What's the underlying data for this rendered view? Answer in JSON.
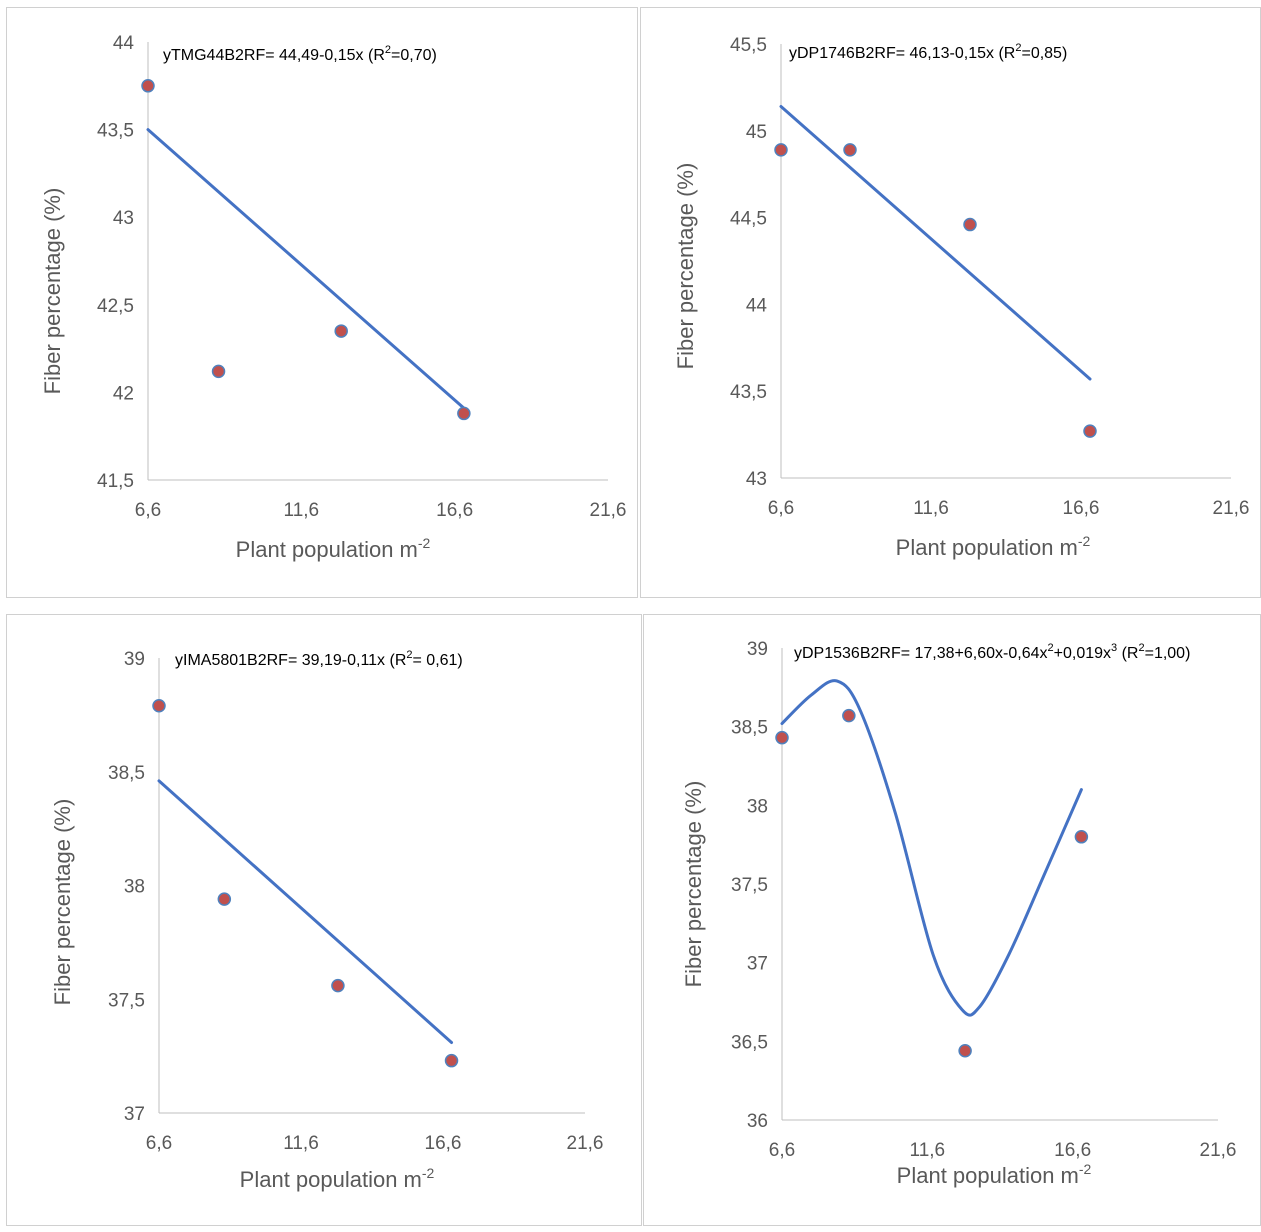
{
  "colors": {
    "line": "#4472C4",
    "point_fill": "#C0504D",
    "point_stroke": "#4F81BD",
    "axis": "#BFBFBF",
    "text": "#595959",
    "border": "#D0D0D0"
  },
  "chart_data": [
    {
      "type": "scatter",
      "panel": "top-left",
      "title": "",
      "equation": {
        "prefix": "yTMG44B2RF= 44,49-0,15x (R",
        "sup": "2",
        "suffix": "=0,70)"
      },
      "xlabel": {
        "text": "Plant population m",
        "sup": "-2"
      },
      "ylabel": "Fiber percentage  (%)",
      "xlim": [
        6.6,
        21.6
      ],
      "ylim": [
        41.5,
        44
      ],
      "xticks": [
        "6,6",
        "11,6",
        "16,6",
        "21,6"
      ],
      "xtick_values": [
        6.6,
        11.6,
        16.6,
        21.6
      ],
      "yticks": [
        "41,5",
        "42",
        "42,5",
        "43",
        "43,5",
        "44"
      ],
      "ytick_values": [
        41.5,
        42,
        42.5,
        43,
        43.5,
        44
      ],
      "points": {
        "x": [
          6.6,
          8.9,
          12.9,
          16.9
        ],
        "y": [
          43.75,
          42.12,
          42.35,
          41.88
        ]
      },
      "trend": {
        "kind": "linear",
        "x_range": [
          6.6,
          16.9
        ],
        "y_range": [
          43.5,
          41.91
        ]
      },
      "grid": false,
      "legend": "none"
    },
    {
      "type": "scatter",
      "panel": "top-right",
      "title": "",
      "equation": {
        "prefix": "yDP1746B2RF= 46,13-0,15x (R",
        "sup": "2",
        "suffix": "=0,85)"
      },
      "xlabel": {
        "text": "Plant population m",
        "sup": "-2"
      },
      "ylabel": "Fiber percentage (%)",
      "xlim": [
        6.6,
        21.6
      ],
      "ylim": [
        43,
        45.5
      ],
      "xticks": [
        "6,6",
        "11,6",
        "16,6",
        "21,6"
      ],
      "xtick_values": [
        6.6,
        11.6,
        16.6,
        21.6
      ],
      "yticks": [
        "43",
        "43,5",
        "44",
        "44,5",
        "45",
        "45,5"
      ],
      "ytick_values": [
        43,
        43.5,
        44,
        44.5,
        45,
        45.5
      ],
      "points": {
        "x": [
          6.6,
          8.9,
          12.9,
          16.9
        ],
        "y": [
          44.89,
          44.89,
          44.46,
          43.27
        ]
      },
      "trend": {
        "kind": "linear",
        "x_range": [
          6.6,
          16.9
        ],
        "y_range": [
          45.14,
          43.57
        ]
      },
      "grid": false,
      "legend": "none"
    },
    {
      "type": "scatter",
      "panel": "bottom-left",
      "title": "",
      "equation": {
        "prefix": "yIMA5801B2RF= 39,19-0,11x (R",
        "sup": "2",
        "suffix": "= 0,61)"
      },
      "xlabel": {
        "text": "Plant population m",
        "sup": "-2"
      },
      "ylabel": "Fiber percentage (%)",
      "xlim": [
        6.6,
        21.6
      ],
      "ylim": [
        37,
        39
      ],
      "xticks": [
        "6,6",
        "11,6",
        "16,6",
        "21,6"
      ],
      "xtick_values": [
        6.6,
        11.6,
        16.6,
        21.6
      ],
      "yticks": [
        "37",
        "37,5",
        "38",
        "38,5",
        "39"
      ],
      "ytick_values": [
        37,
        37.5,
        38,
        38.5,
        39
      ],
      "points": {
        "x": [
          6.6,
          8.9,
          12.9,
          16.9
        ],
        "y": [
          38.79,
          37.94,
          37.56,
          37.23
        ]
      },
      "trend": {
        "kind": "linear",
        "x_range": [
          6.6,
          16.9
        ],
        "y_range": [
          38.46,
          37.31
        ]
      },
      "grid": false,
      "legend": "none"
    },
    {
      "type": "scatter",
      "panel": "bottom-right",
      "title": "",
      "equation": {
        "prefix": "yDP1536B2RF= 17,38+6,60x-0,64x",
        "sup": "2",
        "mid": "+0,019x",
        "sup2": "3",
        "mid2": " (R",
        "sup3": "2",
        "suffix": "=1,00)"
      },
      "xlabel": {
        "text": "Plant population m",
        "sup": "-2"
      },
      "ylabel": "Fiber percentage  (%)",
      "xlim": [
        6.6,
        21.6
      ],
      "ylim": [
        36,
        39
      ],
      "xticks": [
        "6,6",
        "11,6",
        "16,6",
        "21,6"
      ],
      "xtick_values": [
        6.6,
        11.6,
        16.6,
        21.6
      ],
      "yticks": [
        "36",
        "36,5",
        "37",
        "37,5",
        "38",
        "38,5",
        "39"
      ],
      "ytick_values": [
        36,
        36.5,
        37,
        37.5,
        38,
        38.5,
        39
      ],
      "points": {
        "x": [
          6.6,
          8.9,
          12.9,
          16.9
        ],
        "y": [
          38.43,
          38.57,
          36.44,
          37.8
        ]
      },
      "trend": {
        "kind": "smooth",
        "x": [
          6.6,
          7.6,
          8.5,
          9.3,
          10.5,
          11.8,
          12.8,
          13.4,
          14.4,
          15.6,
          16.9
        ],
        "y": [
          38.52,
          38.7,
          38.79,
          38.6,
          37.95,
          37.05,
          36.7,
          36.72,
          37.05,
          37.55,
          38.1
        ]
      },
      "grid": false,
      "legend": "none"
    }
  ]
}
